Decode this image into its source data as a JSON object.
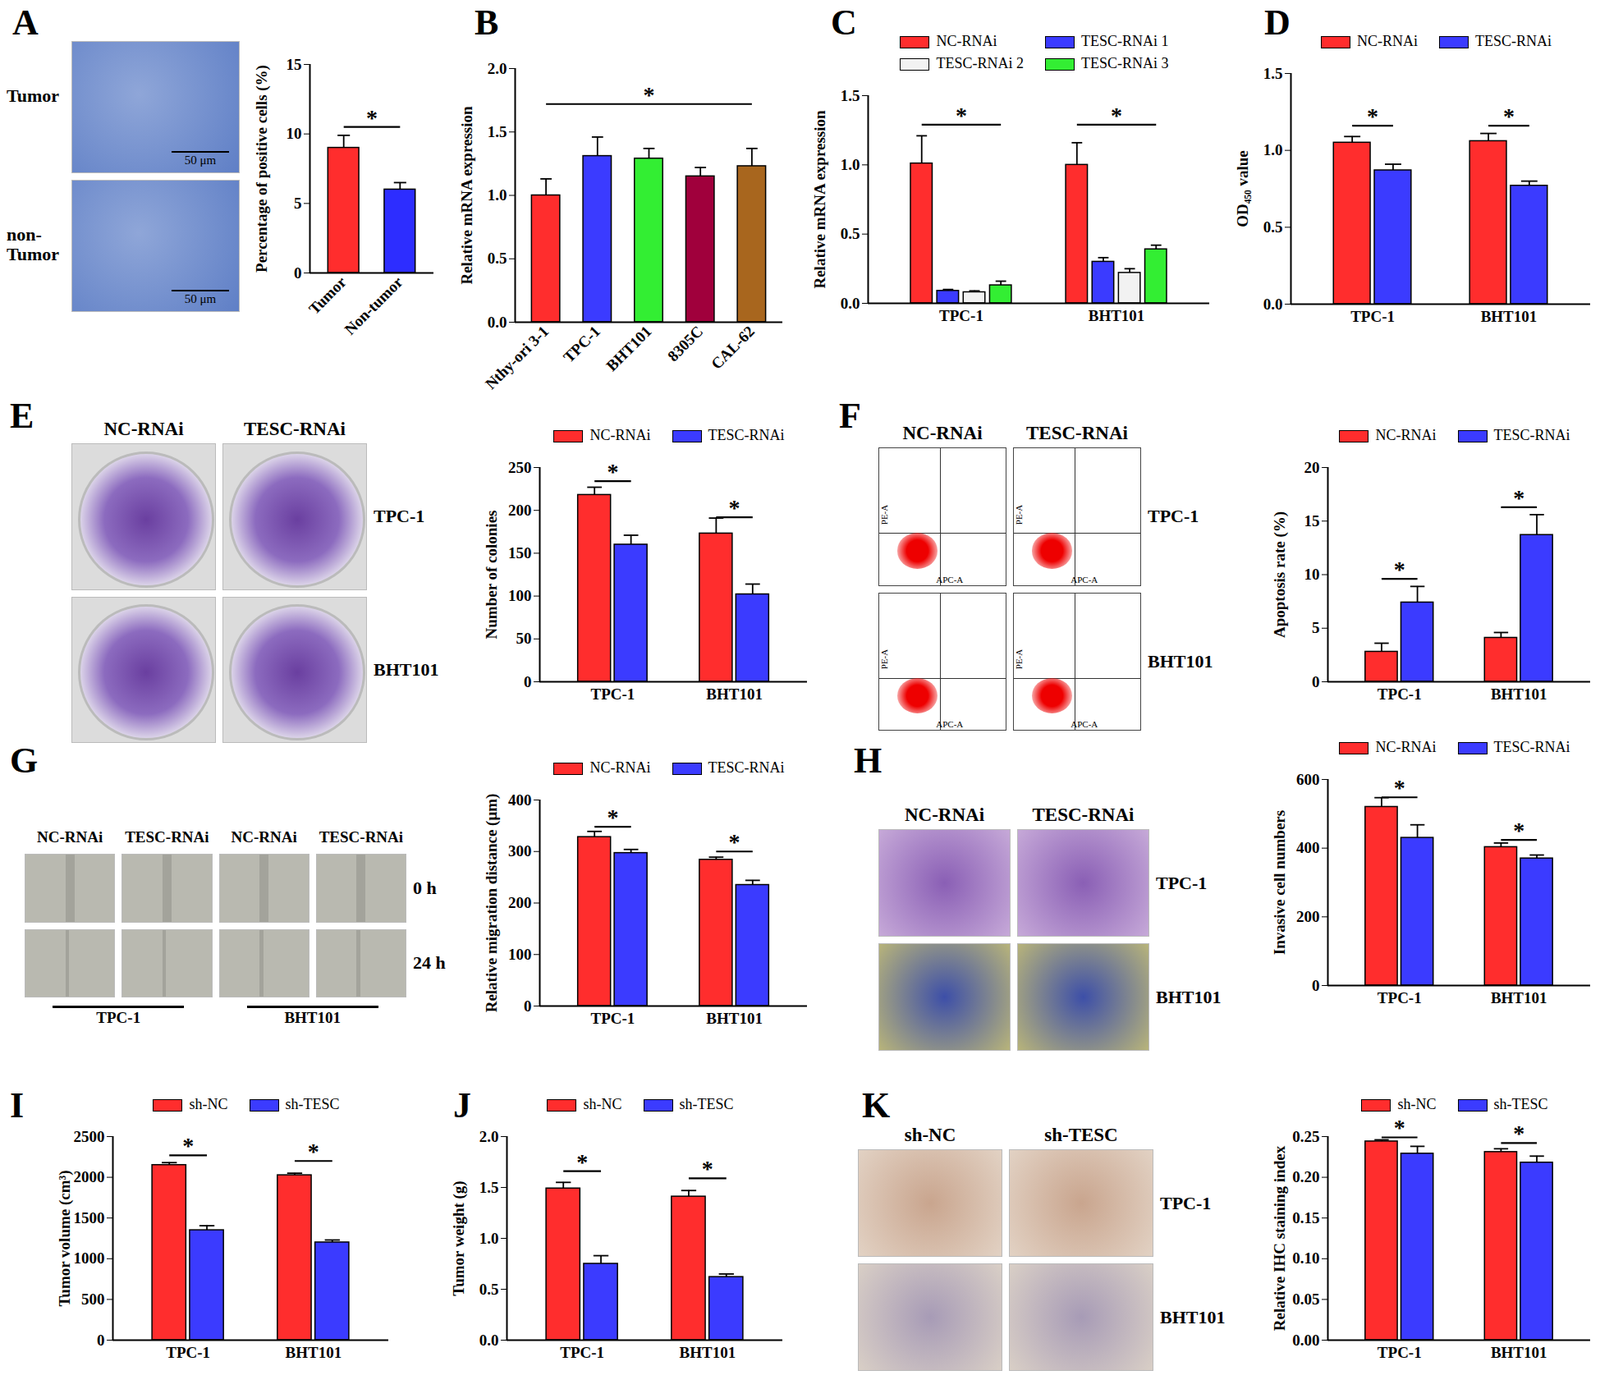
{
  "chart_data": [
    {
      "panel": "A",
      "type": "bar",
      "categories": [
        "Tumor",
        "Non-tumor"
      ],
      "values": [
        9.0,
        6.0
      ],
      "errors": [
        0.9,
        0.5
      ],
      "colors": [
        "#ff2d2d",
        "#2d2dff"
      ],
      "ylabel": "Percentage of positive cells (%)",
      "ylim": [
        0,
        15
      ],
      "yticks": [
        0,
        5,
        10,
        15
      ],
      "significance": [
        {
          "categories": [
            "Tumor",
            "Non-tumor"
          ],
          "y": 10.5,
          "label": "*"
        }
      ]
    },
    {
      "panel": "B",
      "type": "bar",
      "categories": [
        "Nthy-ori 3-1",
        "TPC-1",
        "BHT101",
        "8305C",
        "CAL-62"
      ],
      "values": [
        1.0,
        1.31,
        1.29,
        1.15,
        1.23
      ],
      "errors": [
        0.13,
        0.15,
        0.08,
        0.07,
        0.14
      ],
      "colors": [
        "#ff2d2d",
        "#3b3bff",
        "#33ee33",
        "#a0003c",
        "#a8661e"
      ],
      "ylabel": "Relative mRNA expression",
      "ylim": [
        0,
        2
      ],
      "yticks": [
        {
          "value": 0,
          "label": "0.0"
        },
        {
          "value": 0.5,
          "label": "0.5"
        },
        {
          "value": 1,
          "label": "1.0"
        },
        {
          "value": 1.5,
          "label": "1.5"
        },
        {
          "value": 2,
          "label": "2.0"
        }
      ],
      "significance": [
        {
          "categories": [
            "Nthy-ori 3-1",
            "CAL-62"
          ],
          "y": 1.72,
          "label": "*"
        }
      ]
    },
    {
      "panel": "C",
      "type": "bar",
      "categories": [
        "TPC-1",
        "BHT101"
      ],
      "series": [
        {
          "name": "NC-RNAi",
          "color": "#ff2d2d",
          "values": [
            1.01,
            1.0
          ],
          "errors": [
            0.2,
            0.16
          ]
        },
        {
          "name": "TESC-RNAi 1",
          "color": "#3b3bff",
          "values": [
            0.09,
            0.3
          ],
          "errors": [
            0.01,
            0.03
          ]
        },
        {
          "name": "TESC-RNAi 2",
          "color": "#f2f2f2",
          "values": [
            0.08,
            0.22
          ],
          "errors": [
            0.01,
            0.03
          ]
        },
        {
          "name": "TESC-RNAi 3",
          "color": "#33ee33",
          "values": [
            0.13,
            0.39
          ],
          "errors": [
            0.03,
            0.03
          ]
        }
      ],
      "ylabel": "Relative mRNA expression",
      "ylim": [
        0,
        1.5
      ],
      "yticks": [
        {
          "value": 0,
          "label": "0.0"
        },
        {
          "value": 0.5,
          "label": "0.5"
        },
        {
          "value": 1,
          "label": "1.0"
        },
        {
          "value": 1.5,
          "label": "1.5"
        }
      ],
      "significance": [
        {
          "categories": [
            "TPC-1"
          ],
          "y": 1.29,
          "label": "*"
        },
        {
          "categories": [
            "BHT101"
          ],
          "y": 1.29,
          "label": "*"
        }
      ]
    },
    {
      "panel": "D",
      "type": "bar",
      "categories": [
        "TPC-1",
        "BHT101"
      ],
      "series": [
        {
          "name": "NC-RNAi",
          "color": "#ff2d2d",
          "values": [
            1.05,
            1.06
          ],
          "errors": [
            0.04,
            0.05
          ]
        },
        {
          "name": "TESC-RNAi",
          "color": "#3b3bff",
          "values": [
            0.87,
            0.77
          ],
          "errors": [
            0.04,
            0.03
          ]
        }
      ],
      "ylabel": "OD₄₅₀ value",
      "ylim": [
        0,
        1.5
      ],
      "yticks": [
        {
          "value": 0,
          "label": "0.0"
        },
        {
          "value": 0.5,
          "label": "0.5"
        },
        {
          "value": 1,
          "label": "1.0"
        },
        {
          "value": 1.5,
          "label": "1.5"
        }
      ],
      "significance": [
        {
          "categories": [
            "TPC-1"
          ],
          "y": 1.16,
          "label": "*"
        },
        {
          "categories": [
            "BHT101"
          ],
          "y": 1.16,
          "label": "*"
        }
      ]
    },
    {
      "panel": "E",
      "type": "bar",
      "categories": [
        "TPC-1",
        "BHT101"
      ],
      "series": [
        {
          "name": "NC-RNAi",
          "color": "#ff2d2d",
          "values": [
            218,
            173
          ],
          "errors": [
            9,
            18
          ]
        },
        {
          "name": "TESC-RNAi",
          "color": "#3b3bff",
          "values": [
            160,
            102
          ],
          "errors": [
            11,
            12
          ]
        }
      ],
      "ylabel": "Number of colonies",
      "ylim": [
        0,
        250
      ],
      "yticks": [
        0,
        50,
        100,
        150,
        200,
        250
      ],
      "significance": [
        {
          "categories": [
            "TPC-1"
          ],
          "y": 234,
          "label": "*"
        },
        {
          "categories": [
            "BHT101"
          ],
          "y": 192,
          "label": "*"
        }
      ]
    },
    {
      "panel": "F",
      "type": "bar",
      "categories": [
        "TPC-1",
        "BHT101"
      ],
      "series": [
        {
          "name": "NC-RNAi",
          "color": "#ff2d2d",
          "values": [
            2.8,
            4.1
          ],
          "errors": [
            0.8,
            0.5
          ]
        },
        {
          "name": "TESC-RNAi",
          "color": "#3b3bff",
          "values": [
            7.4,
            13.7
          ],
          "errors": [
            1.5,
            1.9
          ]
        }
      ],
      "ylabel": "Apoptosis rate (%)",
      "ylim": [
        0,
        20
      ],
      "yticks": [
        0,
        5,
        10,
        15,
        20
      ],
      "significance": [
        {
          "categories": [
            "TPC-1"
          ],
          "y": 9.6,
          "label": "*"
        },
        {
          "categories": [
            "BHT101"
          ],
          "y": 16.3,
          "label": "*"
        }
      ]
    },
    {
      "panel": "G",
      "type": "bar",
      "categories": [
        "TPC-1",
        "BHT101"
      ],
      "series": [
        {
          "name": "NC-RNAi",
          "color": "#ff2d2d",
          "values": [
            328,
            284
          ],
          "errors": [
            11,
            5
          ]
        },
        {
          "name": "TESC-RNAi",
          "color": "#3b3bff",
          "values": [
            297,
            235
          ],
          "errors": [
            7,
            9
          ]
        }
      ],
      "ylabel": "Relative migration distance (μm)",
      "ylim": [
        0,
        400
      ],
      "yticks": [
        0,
        100,
        200,
        300,
        400
      ],
      "significance": [
        {
          "categories": [
            "TPC-1"
          ],
          "y": 348,
          "label": "*"
        },
        {
          "categories": [
            "BHT101"
          ],
          "y": 300,
          "label": "*"
        }
      ]
    },
    {
      "panel": "H",
      "type": "bar",
      "categories": [
        "TPC-1",
        "BHT101"
      ],
      "series": [
        {
          "name": "NC-RNAi",
          "color": "#ff2d2d",
          "values": [
            520,
            403
          ],
          "errors": [
            27,
            12
          ]
        },
        {
          "name": "TESC-RNAi",
          "color": "#3b3bff",
          "values": [
            430,
            370
          ],
          "errors": [
            38,
            10
          ]
        }
      ],
      "ylabel": "Invasive cell numbers",
      "ylim": [
        0,
        600
      ],
      "yticks": [
        0,
        200,
        400,
        600
      ],
      "significance": [
        {
          "categories": [
            "TPC-1"
          ],
          "y": 548,
          "label": "*"
        },
        {
          "categories": [
            "BHT101"
          ],
          "y": 424,
          "label": "*"
        }
      ]
    },
    {
      "panel": "I",
      "type": "bar",
      "categories": [
        "TPC-1",
        "BHT101"
      ],
      "series": [
        {
          "name": "sh-NC",
          "color": "#ff2d2d",
          "values": [
            2150,
            2025
          ],
          "errors": [
            30,
            25
          ]
        },
        {
          "name": "sh-TESC",
          "color": "#3b3bff",
          "values": [
            1350,
            1200
          ],
          "errors": [
            55,
            30
          ]
        }
      ],
      "ylabel": "Tumor volume (cm³)",
      "ylim": [
        0,
        2500
      ],
      "yticks": [
        0,
        500,
        1000,
        1500,
        2000,
        2500
      ],
      "significance": [
        {
          "categories": [
            "TPC-1"
          ],
          "y": 2270,
          "label": "*"
        },
        {
          "categories": [
            "BHT101"
          ],
          "y": 2200,
          "label": "*"
        }
      ]
    },
    {
      "panel": "J",
      "type": "bar",
      "categories": [
        "TPC-1",
        "BHT101"
      ],
      "series": [
        {
          "name": "sh-NC",
          "color": "#ff2d2d",
          "values": [
            1.49,
            1.41
          ],
          "errors": [
            0.06,
            0.06
          ]
        },
        {
          "name": "sh-TESC",
          "color": "#3b3bff",
          "values": [
            0.75,
            0.62
          ],
          "errors": [
            0.08,
            0.03
          ]
        }
      ],
      "ylabel": "Tumor weight (g)",
      "ylim": [
        0,
        2
      ],
      "yticks": [
        {
          "value": 0,
          "label": "0.0"
        },
        {
          "value": 0.5,
          "label": "0.5"
        },
        {
          "value": 1,
          "label": "1.0"
        },
        {
          "value": 1.5,
          "label": "1.5"
        },
        {
          "value": 2,
          "label": "2.0"
        }
      ],
      "significance": [
        {
          "categories": [
            "TPC-1"
          ],
          "y": 1.66,
          "label": "*"
        },
        {
          "categories": [
            "BHT101"
          ],
          "y": 1.59,
          "label": "*"
        }
      ]
    },
    {
      "panel": "K",
      "type": "bar",
      "categories": [
        "TPC-1",
        "BHT101"
      ],
      "series": [
        {
          "name": "sh-NC",
          "color": "#ff2d2d",
          "values": [
            0.244,
            0.231
          ],
          "errors": [
            0.002,
            0.004
          ]
        },
        {
          "name": "sh-TESC",
          "color": "#3b3bff",
          "values": [
            0.229,
            0.218
          ],
          "errors": [
            0.009,
            0.008
          ]
        }
      ],
      "ylabel": "Relative IHC staining index",
      "ylim": [
        0,
        0.25
      ],
      "yticks": [
        {
          "value": 0,
          "label": "0.00"
        },
        {
          "value": 0.05,
          "label": "0.05"
        },
        {
          "value": 0.1,
          "label": "0.10"
        },
        {
          "value": 0.15,
          "label": "0.15"
        },
        {
          "value": 0.2,
          "label": "0.20"
        },
        {
          "value": 0.25,
          "label": "0.25"
        }
      ],
      "significance": [
        {
          "categories": [
            "TPC-1"
          ],
          "y": 0.249,
          "label": "*"
        },
        {
          "categories": [
            "BHT101"
          ],
          "y": 0.242,
          "label": "*"
        }
      ]
    }
  ],
  "image_panels": [
    {
      "row_labels": [
        "Tumor",
        "non-Tumor"
      ],
      "scale_bar": "50 μm"
    },
    {
      "column_labels": [
        "NC-RNAi",
        "TESC-RNAi"
      ],
      "row_labels": [
        "TPC-1",
        "BHT101"
      ]
    },
    {
      "column_labels": [
        "NC-RNAi",
        "TESC-RNAi"
      ],
      "row_labels": [
        "TPC-1",
        "BHT101"
      ],
      "axis_labels": [
        "APC-A",
        "PE-A"
      ]
    },
    {
      "column_labels": [
        "NC-RNAi",
        "TESC-RNAi",
        "NC-RNAi",
        "TESC-RNAi"
      ],
      "row_labels": [
        "0 h",
        "24 h"
      ],
      "group_labels": [
        "TPC-1",
        "BHT101"
      ]
    },
    {
      "column_labels": [
        "NC-RNAi",
        "TESC-RNAi"
      ],
      "row_labels": [
        "TPC-1",
        "BHT101"
      ]
    },
    {
      "column_labels": [
        "sh-NC",
        "sh-TESC"
      ],
      "row_labels": [
        "TPC-1",
        "BHT101"
      ]
    }
  ]
}
